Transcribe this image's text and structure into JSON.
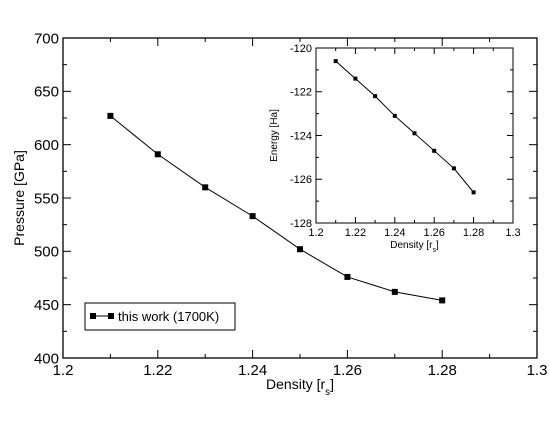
{
  "chart_data": [
    {
      "type": "line",
      "xlabel": "Density [r",
      "xlabel_sub": "s",
      "xlabel_end": "]",
      "ylabel": "Pressure [GPa]",
      "xlim": [
        1.2,
        1.3
      ],
      "ylim": [
        400,
        700
      ],
      "xticks": [
        "1.2",
        "1.22",
        "1.24",
        "1.26",
        "1.28",
        "1.3"
      ],
      "yticks": [
        "400",
        "450",
        "500",
        "550",
        "600",
        "650",
        "700"
      ],
      "grid": false,
      "legend_position": "bottom-left",
      "series": [
        {
          "name": "this work (1700K)",
          "x": [
            1.21,
            1.22,
            1.23,
            1.24,
            1.25,
            1.26,
            1.27,
            1.28
          ],
          "y": [
            627,
            591,
            560,
            533,
            502,
            476,
            462,
            454
          ],
          "marker": "square",
          "color": "#000000"
        }
      ]
    },
    {
      "type": "line",
      "xlabel": "Density [r",
      "xlabel_sub": "s",
      "xlabel_end": "]",
      "ylabel": "Energy [Ha]",
      "xlim": [
        1.2,
        1.3
      ],
      "ylim": [
        -128,
        -120
      ],
      "xticks": [
        "1.2",
        "1.22",
        "1.24",
        "1.26",
        "1.28",
        "1.3"
      ],
      "yticks": [
        "-128",
        "-126",
        "-124",
        "-122",
        "-120"
      ],
      "grid": false,
      "series": [
        {
          "x": [
            1.21,
            1.22,
            1.23,
            1.24,
            1.25,
            1.26,
            1.27,
            1.28
          ],
          "y": [
            -120.6,
            -121.4,
            -122.2,
            -123.1,
            -123.9,
            -124.7,
            -125.5,
            -126.6
          ],
          "marker": "square",
          "color": "#000000"
        }
      ]
    }
  ]
}
